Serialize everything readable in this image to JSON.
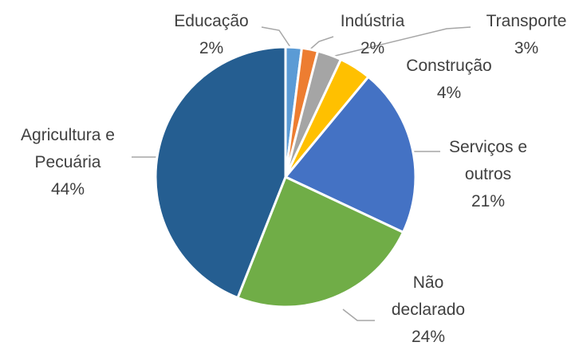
{
  "chart_data": {
    "type": "pie",
    "categories": [
      "Educação",
      "Indústria",
      "Transporte",
      "Construção",
      "Serviços e outros",
      "Não declarado",
      "Agricultura e Pecuária"
    ],
    "values": [
      2,
      2,
      3,
      4,
      21,
      24,
      44
    ],
    "value_labels": [
      "2%",
      "2%",
      "3%",
      "4%",
      "21%",
      "24%",
      "44%"
    ],
    "colors": [
      "#5b9bd5",
      "#ed7d31",
      "#a5a5a5",
      "#ffc000",
      "#4472c4",
      "#70ad47",
      "#255e91"
    ]
  }
}
